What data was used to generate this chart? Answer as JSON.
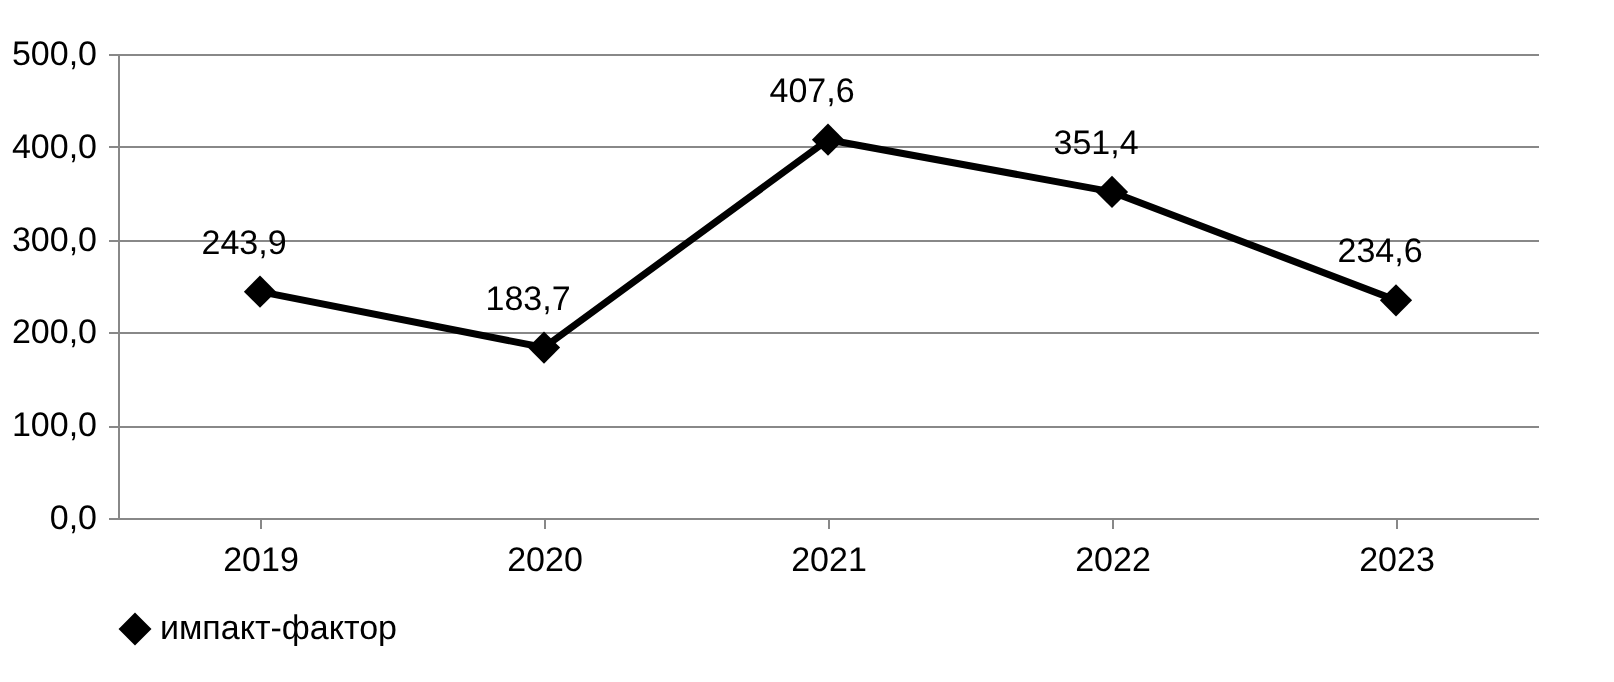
{
  "chart_data": {
    "type": "line",
    "categories": [
      "2019",
      "2020",
      "2021",
      "2022",
      "2023"
    ],
    "series": [
      {
        "name": "импакт-фактор",
        "color": "#000000",
        "values": [
          243.9,
          183.7,
          407.6,
          351.4,
          234.6
        ],
        "value_labels": [
          "243,9",
          "183,7",
          "407,6",
          "351,4",
          "234,6"
        ]
      }
    ],
    "ylim": [
      0,
      500
    ],
    "yticks": [
      {
        "value": 0,
        "label": "0,0"
      },
      {
        "value": 100,
        "label": "100,0"
      },
      {
        "value": 200,
        "label": "200,0"
      },
      {
        "value": 300,
        "label": "300,0"
      },
      {
        "value": 400,
        "label": "400,0"
      },
      {
        "value": 500,
        "label": "500,0"
      }
    ],
    "grid": "y",
    "legend": "bottom",
    "marker": "diamond",
    "line_style": "solid"
  }
}
